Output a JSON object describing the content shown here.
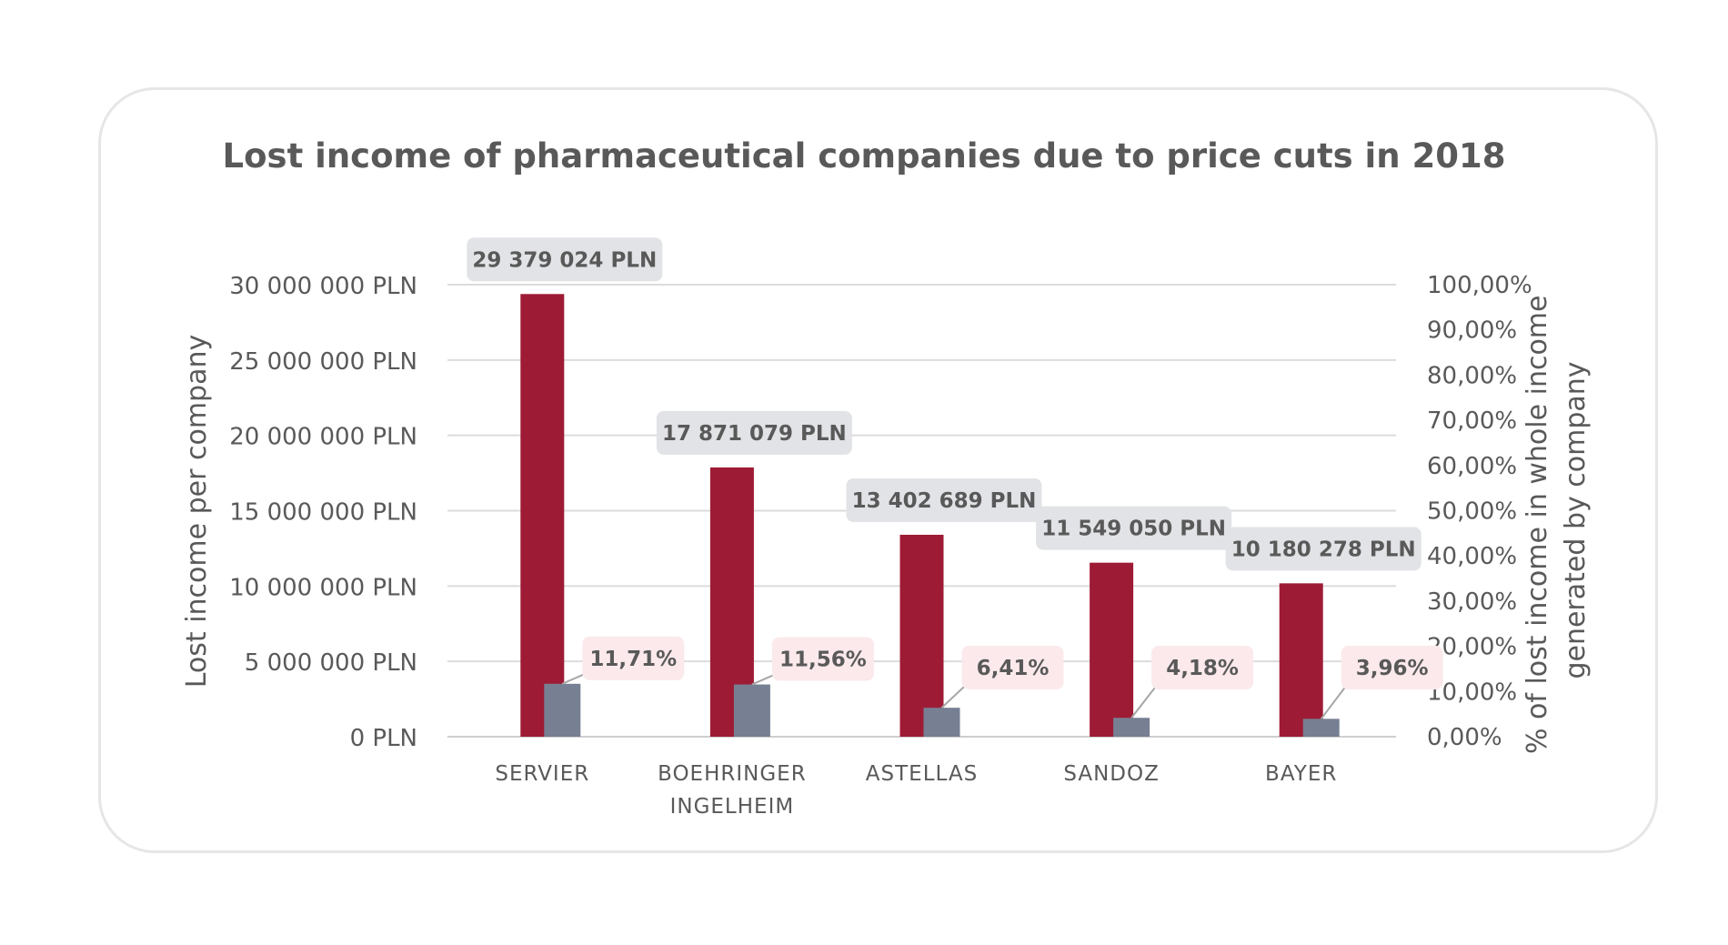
{
  "chart_data": {
    "type": "bar",
    "title": "Lost income of pharmaceutical companies due to price cuts in 2018",
    "ylabel": "Lost income per company",
    "y2label_line1": "% of lost income in whole income",
    "y2label_line2": "generated by company",
    "ylim": [
      0,
      30000000
    ],
    "y2lim": [
      0,
      100
    ],
    "categories": [
      [
        "SERVIER"
      ],
      [
        "BOEHRINGER",
        "INGELHEIM"
      ],
      [
        "ASTELLAS"
      ],
      [
        "SANDOZ"
      ],
      [
        "BAYER"
      ]
    ],
    "series": [
      {
        "axis": "left",
        "color": "#9e1b35",
        "values": [
          29379024,
          17871079,
          13402689,
          11549050,
          10180278
        ],
        "labels": [
          "29 379 024 PLN",
          "17 871 079 PLN",
          "13 402 689 PLN",
          "11 549 050 PLN",
          "10 180 278 PLN"
        ]
      },
      {
        "axis": "right",
        "color": "#777f92",
        "values": [
          11.71,
          11.56,
          6.41,
          4.18,
          3.96
        ],
        "labels": [
          "11,71%",
          "11,56%",
          "6,41%",
          "4,18%",
          "3,96%"
        ]
      }
    ],
    "y_ticks": [
      "0 PLN",
      "5 000 000 PLN",
      "10 000 000 PLN",
      "15 000 000 PLN",
      "20 000 000 PLN",
      "25 000 000 PLN",
      "30 000 000 PLN"
    ],
    "y2_ticks": [
      "0,00%",
      "10,00%",
      "20,00%",
      "30,00%",
      "40,00%",
      "50,00%",
      "60,00%",
      "70,00%",
      "80,00%",
      "90,00%",
      "100,00%"
    ],
    "grid": true,
    "legend": "none"
  }
}
